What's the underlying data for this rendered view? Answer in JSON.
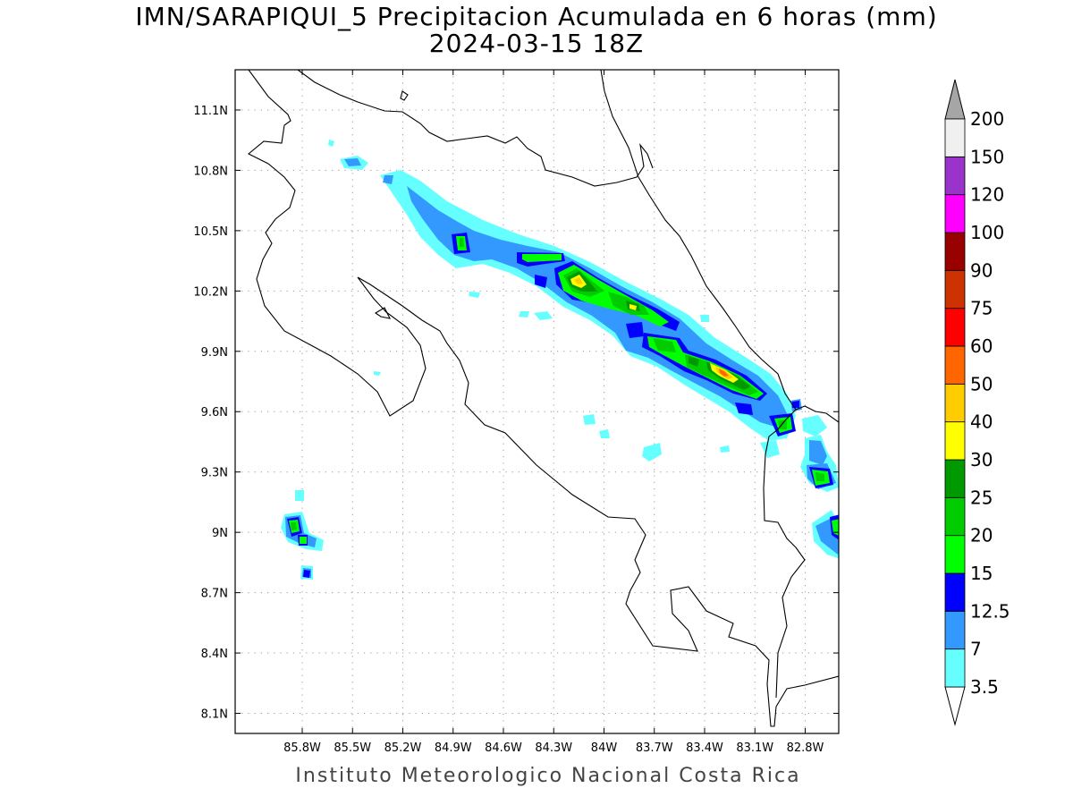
{
  "title": {
    "line1": "IMN/SARAPIQUI_5 Precipitacion Acumulada en 6 horas (mm)",
    "line2": "2024-03-15 18Z"
  },
  "footer": "Instituto Meteorologico Nacional Costa Rica",
  "map": {
    "lon_range": [
      -86.2,
      -82.6
    ],
    "lat_range": [
      8.0,
      11.3
    ],
    "lon_ticks": [
      {
        "value": -85.8,
        "label": "85.8W"
      },
      {
        "value": -85.5,
        "label": "85.5W"
      },
      {
        "value": -85.2,
        "label": "85.2W"
      },
      {
        "value": -84.9,
        "label": "84.9W"
      },
      {
        "value": -84.6,
        "label": "84.6W"
      },
      {
        "value": -84.3,
        "label": "84.3W"
      },
      {
        "value": -84.0,
        "label": "84W"
      },
      {
        "value": -83.7,
        "label": "83.7W"
      },
      {
        "value": -83.4,
        "label": "83.4W"
      },
      {
        "value": -83.1,
        "label": "83.1W"
      },
      {
        "value": -82.8,
        "label": "82.8W"
      }
    ],
    "lat_ticks": [
      {
        "value": 11.1,
        "label": "11.1N"
      },
      {
        "value": 10.8,
        "label": "10.8N"
      },
      {
        "value": 10.5,
        "label": "10.5N"
      },
      {
        "value": 10.2,
        "label": "10.2N"
      },
      {
        "value": 9.9,
        "label": "9.9N"
      },
      {
        "value": 9.6,
        "label": "9.6N"
      },
      {
        "value": 9.3,
        "label": "9.3N"
      },
      {
        "value": 9.0,
        "label": "9N"
      },
      {
        "value": 8.7,
        "label": "8.7N"
      },
      {
        "value": 8.4,
        "label": "8.4N"
      },
      {
        "value": 8.1,
        "label": "8.1N"
      }
    ],
    "grid": "dotted"
  },
  "colorbar": {
    "levels": [
      "3.5",
      "7",
      "12.5",
      "15",
      "20",
      "25",
      "30",
      "40",
      "50",
      "60",
      "75",
      "90",
      "100",
      "120",
      "150",
      "200"
    ],
    "colors": [
      "#66ffff",
      "#3399ff",
      "#0000ff",
      "#00ff00",
      "#00cc00",
      "#009900",
      "#ffff00",
      "#ffcc00",
      "#ff6600",
      "#ff0000",
      "#cc3300",
      "#990000",
      "#ff00ff",
      "#9933cc",
      "#f0f0f0"
    ],
    "under_color": "#ffffff",
    "over_color": "#a6a6a6"
  }
}
